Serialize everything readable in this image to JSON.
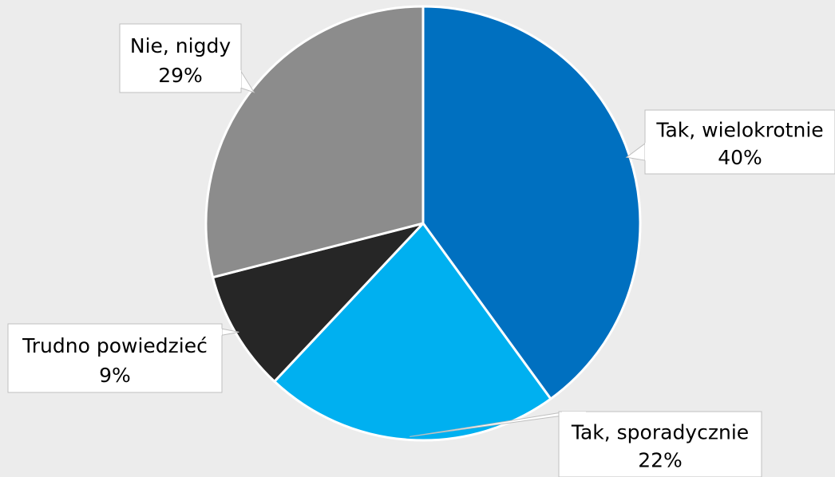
{
  "chart_data": {
    "type": "pie",
    "title": "",
    "categories": [
      "Tak, wielokrotnie",
      "Tak, sporadycznie",
      "Trudno powiedzieć",
      "Nie, nigdy"
    ],
    "values": [
      40,
      22,
      9,
      29
    ],
    "labels": [
      "40%",
      "22%",
      "9%",
      "29%"
    ],
    "colors": [
      "#0070c0",
      "#00b0f0",
      "#262626",
      "#8c8c8c"
    ],
    "start_angle_deg": 0,
    "direction": "clockwise",
    "legend": "none"
  }
}
